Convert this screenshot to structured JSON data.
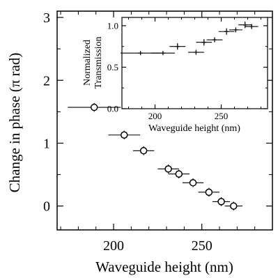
{
  "chart_data": [
    {
      "type": "scatter",
      "title": "",
      "xlabel": "Waveguide height (nm)",
      "ylabel": "Change in phase (π rad)",
      "xlim": [
        168,
        290
      ],
      "ylim": [
        -0.38,
        3.1
      ],
      "xticks": [
        200,
        250
      ],
      "yticks": [
        0,
        1,
        2,
        3
      ],
      "x_minor_step": 10,
      "y_minor_step": 0.5,
      "marker": "open-circle",
      "error_bars": "horizontal-and-vertical",
      "points": [
        {
          "x": 189,
          "y": 1.57,
          "xerr": 15,
          "yerr": 0.07
        },
        {
          "x": 206,
          "y": 1.13,
          "xerr": 9,
          "yerr": 0.07
        },
        {
          "x": 217,
          "y": 0.88,
          "xerr": 6,
          "yerr": 0.07
        },
        {
          "x": 231,
          "y": 0.59,
          "xerr": 6,
          "yerr": 0.07
        },
        {
          "x": 237,
          "y": 0.51,
          "xerr": 6,
          "yerr": 0.07
        },
        {
          "x": 245,
          "y": 0.37,
          "xerr": 6,
          "yerr": 0.07
        },
        {
          "x": 254,
          "y": 0.22,
          "xerr": 6,
          "yerr": 0.07
        },
        {
          "x": 261,
          "y": 0.07,
          "xerr": 5,
          "yerr": 0.07
        },
        {
          "x": 268,
          "y": 0.0,
          "xerr": 5,
          "yerr": 0.07
        }
      ]
    },
    {
      "type": "scatter",
      "title": "",
      "xlabel": "Waveguide height (nm)",
      "ylabel": "Normalized Transmission",
      "ylabel_lines": [
        "Normalized",
        "Transmission"
      ],
      "xlim": [
        175,
        285
      ],
      "ylim": [
        0.0,
        1.1
      ],
      "xticks": [
        200,
        250
      ],
      "yticks": [
        0.0,
        0.5,
        1.0
      ],
      "ytick_labels": [
        "0.0",
        "0.5",
        "1.0"
      ],
      "x_minor_step": 10,
      "y_minor_step": 0.25,
      "marker": "plus",
      "error_bars": "horizontal-and-vertical",
      "points": [
        {
          "x": 189,
          "y": 0.67,
          "xerr": 15,
          "yerr": 0.02
        },
        {
          "x": 206,
          "y": 0.67,
          "xerr": 9,
          "yerr": 0.02
        },
        {
          "x": 217,
          "y": 0.75,
          "xerr": 6,
          "yerr": 0.04
        },
        {
          "x": 231,
          "y": 0.68,
          "xerr": 6,
          "yerr": 0.03
        },
        {
          "x": 237,
          "y": 0.8,
          "xerr": 6,
          "yerr": 0.04
        },
        {
          "x": 245,
          "y": 0.83,
          "xerr": 6,
          "yerr": 0.03
        },
        {
          "x": 254,
          "y": 0.93,
          "xerr": 6,
          "yerr": 0.04
        },
        {
          "x": 261,
          "y": 0.95,
          "xerr": 5,
          "yerr": 0.03
        },
        {
          "x": 268,
          "y": 1.01,
          "xerr": 5,
          "yerr": 0.04
        },
        {
          "x": 273,
          "y": 0.99,
          "xerr": 5,
          "yerr": 0.03
        }
      ]
    }
  ]
}
